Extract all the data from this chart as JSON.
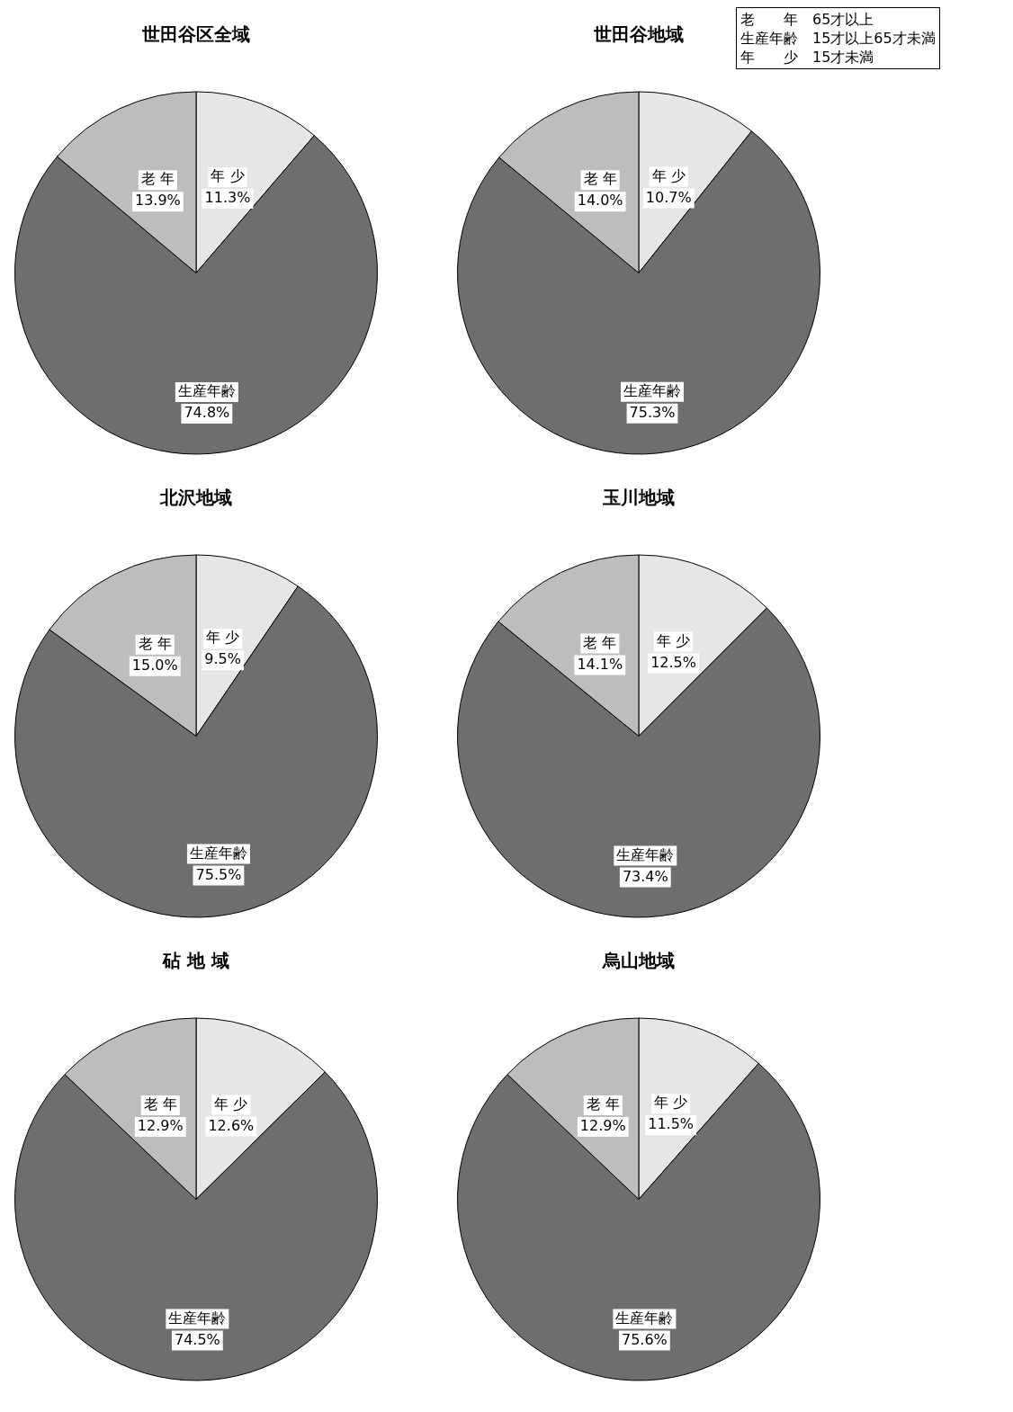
{
  "chart_data": [
    {
      "type": "pie",
      "title": "世田谷区全域",
      "categories": [
        "年 少",
        "生産年齢",
        "老 年"
      ],
      "values": [
        11.3,
        74.8,
        13.9
      ],
      "value_labels": [
        "11.3%",
        "74.8%",
        "13.9%"
      ],
      "colors": [
        "#e6e6e6",
        "#6e6e6e",
        "#bdbdbd"
      ]
    },
    {
      "type": "pie",
      "title": "世田谷地域",
      "categories": [
        "年 少",
        "生産年齢",
        "老 年"
      ],
      "values": [
        10.7,
        75.3,
        14.0
      ],
      "value_labels": [
        "10.7%",
        "75.3%",
        "14.0%"
      ],
      "colors": [
        "#e6e6e6",
        "#6e6e6e",
        "#bdbdbd"
      ],
      "annotations": [
        "老　　年　65才以上",
        "生産年齢　15才以上65才未満",
        "年　　少　15才未満"
      ]
    },
    {
      "type": "pie",
      "title": "北沢地域",
      "categories": [
        "年 少",
        "生産年齢",
        "老 年"
      ],
      "values": [
        9.5,
        75.5,
        15.0
      ],
      "value_labels": [
        "9.5%",
        "75.5%",
        "15.0%"
      ],
      "colors": [
        "#e6e6e6",
        "#6e6e6e",
        "#bdbdbd"
      ]
    },
    {
      "type": "pie",
      "title": "玉川地域",
      "categories": [
        "年 少",
        "生産年齢",
        "老 年"
      ],
      "values": [
        12.5,
        73.4,
        14.1
      ],
      "value_labels": [
        "12.5%",
        "73.4%",
        "14.1%"
      ],
      "colors": [
        "#e6e6e6",
        "#6e6e6e",
        "#bdbdbd"
      ]
    },
    {
      "type": "pie",
      "title": "砧 地 域",
      "categories": [
        "年 少",
        "生産年齢",
        "老 年"
      ],
      "values": [
        12.6,
        74.5,
        12.9
      ],
      "value_labels": [
        "12.6%",
        "74.5%",
        "12.9%"
      ],
      "colors": [
        "#e6e6e6",
        "#6e6e6e",
        "#bdbdbd"
      ]
    },
    {
      "type": "pie",
      "title": "烏山地域",
      "categories": [
        "年 少",
        "生産年齢",
        "老 年"
      ],
      "values": [
        11.5,
        75.6,
        12.9
      ],
      "value_labels": [
        "11.5%",
        "75.6%",
        "12.9%"
      ],
      "colors": [
        "#e6e6e6",
        "#6e6e6e",
        "#bdbdbd"
      ]
    }
  ]
}
